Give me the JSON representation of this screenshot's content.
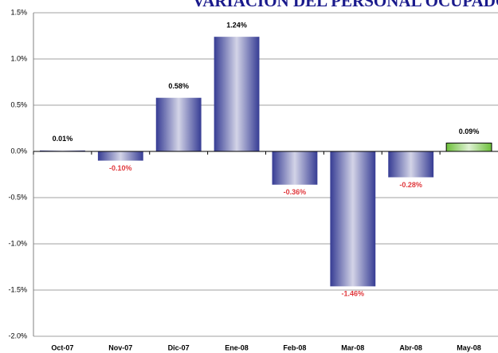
{
  "chart_data": {
    "type": "bar",
    "title": "VARIACION DEL PERSONAL OCUPADO",
    "categories": [
      "Oct-07",
      "Nov-07",
      "Dic-07",
      "Ene-08",
      "Feb-08",
      "Mar-08",
      "Abr-08",
      "May-08"
    ],
    "values": [
      0.01,
      -0.1,
      0.58,
      1.24,
      -0.36,
      -1.46,
      -0.28,
      0.09
    ],
    "value_labels": [
      "0.01%",
      "-0.10%",
      "0.58%",
      "1.24%",
      "-0.36%",
      "-1.46%",
      "-0.28%",
      "0.09%"
    ],
    "colors": [
      "#363c94",
      "#363c94",
      "#363c94",
      "#363c94",
      "#363c94",
      "#363c94",
      "#363c94",
      "#6cc03a"
    ],
    "ylim": [
      -2.0,
      1.5
    ],
    "yticks": [
      {
        "value": -2.0,
        "label": "-2.0%"
      },
      {
        "value": -1.5,
        "label": "-1.5%"
      },
      {
        "value": -1.0,
        "label": "-1.0%"
      },
      {
        "value": -0.5,
        "label": "-0.5%"
      },
      {
        "value": 0.0,
        "label": "0.0%"
      },
      {
        "value": 0.5,
        "label": "0.5%"
      },
      {
        "value": 1.0,
        "label": "1.0%"
      },
      {
        "value": 1.5,
        "label": "1.5%"
      }
    ],
    "grid": true
  }
}
